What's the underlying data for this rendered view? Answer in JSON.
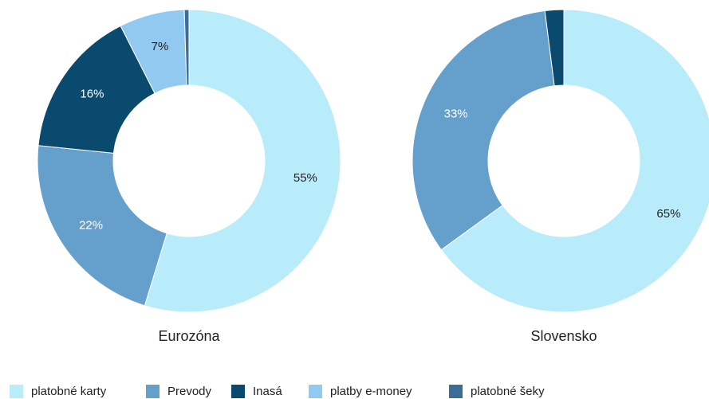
{
  "chart_data": {
    "type": "pie",
    "categories": [
      "platobné karty",
      "Prevody",
      "Inasá",
      "platby e-money",
      "platobné šeky"
    ],
    "colors": [
      "#b9ecfb",
      "#659fcc",
      "#0b4a6f",
      "#92c9f1",
      "#3a6e96"
    ],
    "series": [
      {
        "name": "Eurozóna",
        "values": [
          55,
          22,
          16,
          7,
          0.5
        ],
        "value_labels": [
          "55%",
          "22%",
          "16%",
          "7%",
          null
        ]
      },
      {
        "name": "Slovensko",
        "values": [
          65,
          33,
          2,
          0,
          0
        ],
        "value_labels": [
          "65%",
          "33%",
          null,
          null,
          null
        ]
      }
    ]
  }
}
